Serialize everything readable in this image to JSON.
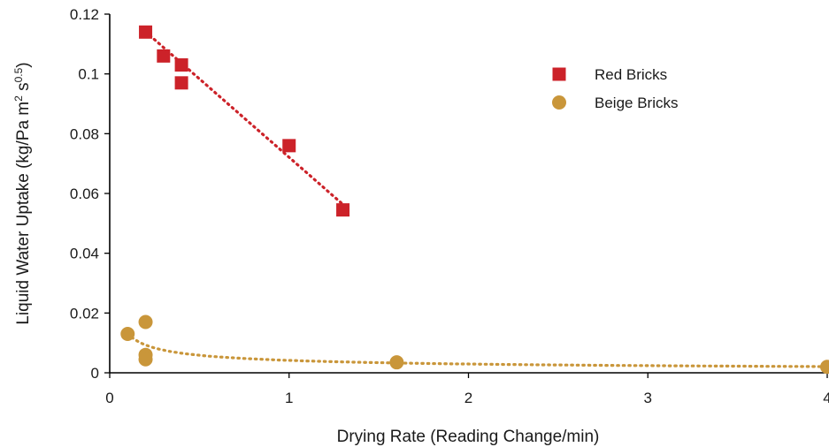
{
  "chart_data": {
    "type": "scatter",
    "xlabel": "Drying Rate (Reading Change/min)",
    "ylabel": {
      "main": "Liquid Water Uptake (kg/Pa m",
      "sup1": "2",
      "mid": " s",
      "sup2": "0.5",
      "end": ")"
    },
    "xlim": [
      0,
      4
    ],
    "ylim": [
      0,
      0.12
    ],
    "x_ticks": [
      0,
      1,
      2,
      3,
      4
    ],
    "x_tick_labels": [
      "0",
      "1",
      "2",
      "3",
      "4"
    ],
    "y_ticks": [
      0,
      0.02,
      0.04,
      0.06,
      0.08,
      0.1,
      0.12
    ],
    "y_tick_labels": [
      "0",
      "0.02",
      "0.04",
      "0.06",
      "0.08",
      "0.1",
      "0.12"
    ],
    "grid": false,
    "legend_position": "top-right",
    "series": [
      {
        "name": "Red Bricks",
        "marker": "square",
        "color": "#CC2229",
        "points": [
          {
            "x": 0.2,
            "y": 0.114
          },
          {
            "x": 0.3,
            "y": 0.106
          },
          {
            "x": 0.4,
            "y": 0.103
          },
          {
            "x": 0.4,
            "y": 0.097
          },
          {
            "x": 1.0,
            "y": 0.076
          },
          {
            "x": 1.3,
            "y": 0.0545
          }
        ],
        "trendline": {
          "type": "linear",
          "style": "dotted",
          "x_range": [
            0.2,
            1.3
          ],
          "slope": -0.0525,
          "intercept": 0.1246
        }
      },
      {
        "name": "Beige Bricks",
        "marker": "circle",
        "color": "#C9963A",
        "points": [
          {
            "x": 0.1,
            "y": 0.013
          },
          {
            "x": 0.2,
            "y": 0.017
          },
          {
            "x": 0.2,
            "y": 0.006
          },
          {
            "x": 0.2,
            "y": 0.0045
          },
          {
            "x": 1.6,
            "y": 0.0035
          },
          {
            "x": 4.0,
            "y": 0.002
          }
        ],
        "trendline": {
          "type": "power",
          "style": "dotted",
          "x_range": [
            0.1,
            4.0
          ],
          "coefficient": 0.00415,
          "exponent": -0.5
        }
      }
    ]
  }
}
